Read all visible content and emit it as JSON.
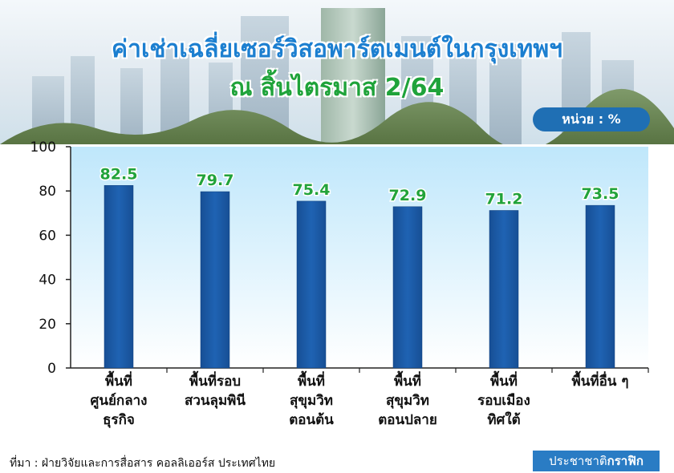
{
  "header": {
    "title": "ค่าเช่าเฉลี่ยเซอร์วิสอพาร์ตเมนต์ในกรุงเทพฯ",
    "subtitle": "ณ สิ้นไตรมาส 2/64",
    "unit": "หน่วย : %"
  },
  "footer": {
    "source": "ที่มา : ฝ่ายวิจัยและการสื่อสาร คอลลิเออร์ส ประเทศไทย",
    "brand_part1": "ประชาชาติ",
    "brand_part2": "กราฟิก"
  },
  "colors": {
    "bar": "#1f63b3",
    "value_label": "#22a33a",
    "plot_bg_top": "#bfe7fb",
    "plot_bg_bottom": "#ffffff"
  },
  "chart_data": {
    "type": "bar",
    "categories": [
      [
        "พื้นที่",
        "ศูนย์กลาง",
        "ธุรกิจ"
      ],
      [
        "พื้นที่รอบ",
        "สวนลุมพินี"
      ],
      [
        "พื้นที่",
        "สุขุมวิท",
        "ตอนต้น"
      ],
      [
        "พื้นที่",
        "สุขุมวิท",
        "ตอนปลาย"
      ],
      [
        "พื้นที่",
        "รอบเมือง",
        "ทิศใต้"
      ],
      [
        "พื้นที่อื่น ๆ"
      ]
    ],
    "values": [
      82.5,
      79.7,
      75.4,
      72.9,
      71.2,
      73.5
    ],
    "value_labels": [
      "82.5",
      "79.7",
      "75.4",
      "72.9",
      "71.2",
      "73.5"
    ],
    "yticks": [
      "0",
      "20",
      "40",
      "60",
      "80",
      "100"
    ],
    "ylim": [
      0,
      100
    ],
    "grid": false
  }
}
